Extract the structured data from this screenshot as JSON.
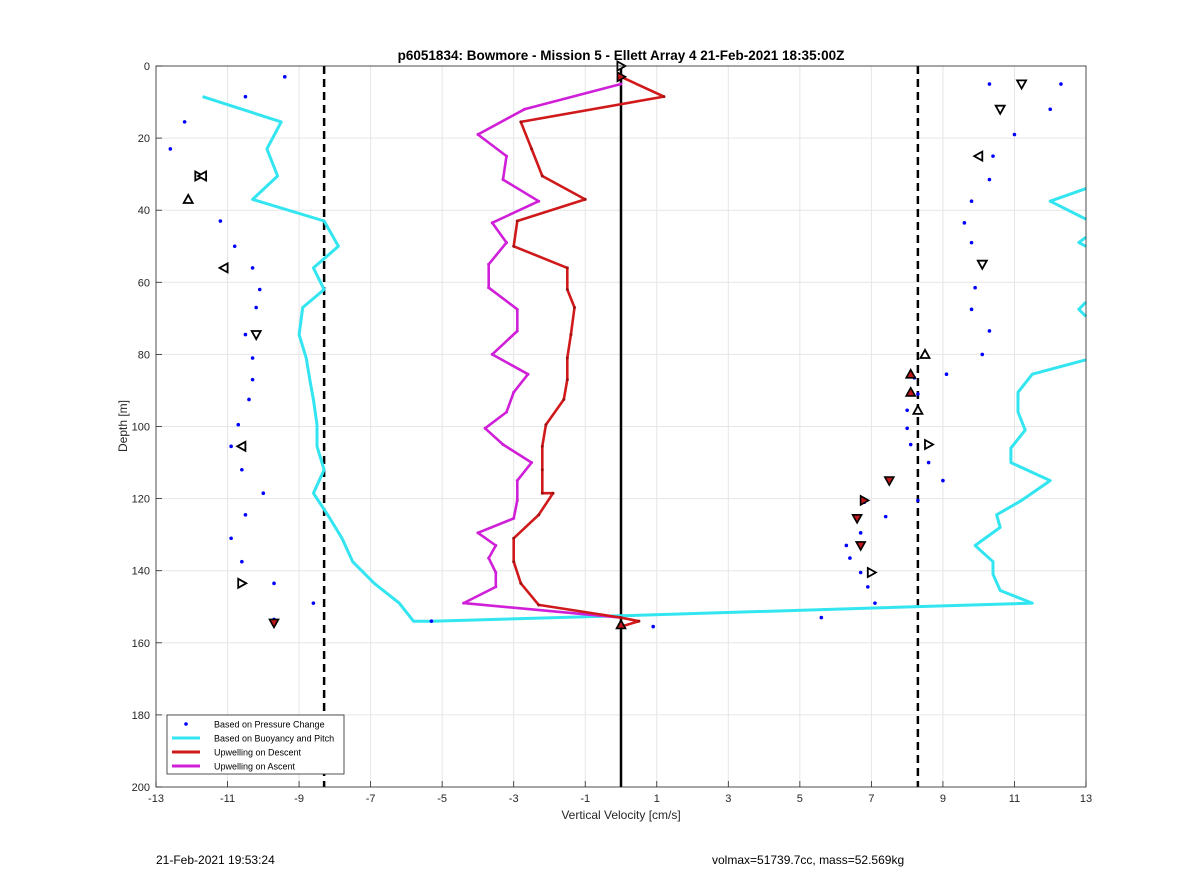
{
  "footer": {
    "timestamp": "21-Feb-2021 19:53:24",
    "volmax_mass": "volmax=51739.7cc, mass=52.569kg"
  },
  "chart_data": {
    "type": "line",
    "title": "p6051834: Bowmore - Mission 5 - Ellett Array 4 21-Feb-2021 18:35:00Z",
    "xlabel": "Vertical Velocity [cm/s]",
    "ylabel": "Depth [m]",
    "xlim": [
      -13,
      13
    ],
    "ylim": [
      0,
      200
    ],
    "y_reversed": true,
    "grid": true,
    "xticks": [
      -13,
      -11,
      -9,
      -7,
      -5,
      -3,
      -1,
      1,
      3,
      5,
      7,
      9,
      11,
      13
    ],
    "yticks": [
      0,
      20,
      40,
      60,
      80,
      100,
      120,
      140,
      160,
      180,
      200
    ],
    "legend_location": "bottom-left",
    "colors": {
      "pressure": "#0000ff",
      "buoyancy": "#33e5f0",
      "descent": "#d0191a",
      "ascent": "#d01fd8",
      "reference": "#000000"
    },
    "vertical_lines": [
      {
        "x": -8.3,
        "style": "dashed"
      },
      {
        "x": 8.3,
        "style": "dashed"
      },
      {
        "x": 0,
        "style": "solid"
      }
    ],
    "series": [
      {
        "name": "Based on Pressure Change",
        "style": "points",
        "points": [
          [
            -9.4,
            3
          ],
          [
            -10.5,
            8.5
          ],
          [
            -12.2,
            15.5
          ],
          [
            -12.6,
            23
          ],
          [
            -11.8,
            30.5
          ],
          [
            -12.1,
            37
          ],
          [
            -11.2,
            43
          ],
          [
            -10.8,
            50
          ],
          [
            -10.3,
            56
          ],
          [
            -10.1,
            62
          ],
          [
            -10.2,
            67
          ],
          [
            -10.5,
            74.5
          ],
          [
            -10.3,
            81
          ],
          [
            -10.3,
            87
          ],
          [
            -10.4,
            92.5
          ],
          [
            -10.7,
            99.5
          ],
          [
            -10.9,
            105.5
          ],
          [
            -10.6,
            112
          ],
          [
            -10.0,
            118.5
          ],
          [
            -10.5,
            124.5
          ],
          [
            -10.9,
            131
          ],
          [
            -10.6,
            137.5
          ],
          [
            -9.7,
            143.5
          ],
          [
            -9.7,
            153.5
          ],
          [
            -8.6,
            149
          ],
          [
            -5.3,
            154
          ],
          [
            0.9,
            155.5
          ],
          [
            5.6,
            153
          ],
          [
            6.3,
            133
          ],
          [
            6.4,
            136.5
          ],
          [
            6.7,
            140.5
          ],
          [
            6.9,
            144.5
          ],
          [
            7.1,
            149
          ],
          [
            6.8,
            121
          ],
          [
            6.6,
            125.5
          ],
          [
            6.7,
            129.5
          ],
          [
            7.4,
            125
          ],
          [
            8.0,
            100.5
          ],
          [
            8.1,
            105
          ],
          [
            8.6,
            110
          ],
          [
            9.0,
            115
          ],
          [
            8.3,
            120.5
          ],
          [
            8.2,
            86.5
          ],
          [
            8.3,
            91
          ],
          [
            8.0,
            95.5
          ],
          [
            9.1,
            85.5
          ],
          [
            10.3,
            5
          ],
          [
            12.3,
            5
          ],
          [
            12.0,
            12
          ],
          [
            11.0,
            19
          ],
          [
            10.4,
            25
          ],
          [
            10.3,
            31.5
          ],
          [
            9.8,
            37.5
          ],
          [
            9.6,
            43.5
          ],
          [
            9.8,
            49
          ],
          [
            10.1,
            55
          ],
          [
            9.9,
            61.5
          ],
          [
            9.8,
            67.5
          ],
          [
            10.3,
            73.5
          ],
          [
            10.1,
            80
          ]
        ]
      },
      {
        "name": "Based on Buoyancy and Pitch",
        "style": "line",
        "segments": [
          [
            [
              -11.7,
              8.5
            ],
            [
              -9.5,
              15.5
            ],
            [
              -9.9,
              23
            ],
            [
              -9.6,
              30.5
            ],
            [
              -10.3,
              37
            ],
            [
              -8.3,
              43
            ],
            [
              -7.9,
              50
            ],
            [
              -8.6,
              56
            ],
            [
              -8.3,
              62
            ],
            [
              -8.9,
              67
            ],
            [
              -9.0,
              74.5
            ],
            [
              -8.8,
              81
            ],
            [
              -8.7,
              87
            ],
            [
              -8.6,
              92.5
            ],
            [
              -8.5,
              99.5
            ],
            [
              -8.5,
              105.5
            ],
            [
              -8.3,
              112
            ],
            [
              -8.6,
              118.5
            ],
            [
              -8.2,
              124.5
            ],
            [
              -7.8,
              131
            ],
            [
              -7.5,
              137.5
            ],
            [
              -6.9,
              143.5
            ],
            [
              -6.2,
              149
            ],
            [
              -5.8,
              154
            ],
            [
              -5.3,
              154
            ],
            [
              0.0,
              152.5
            ],
            [
              11.5,
              149
            ],
            [
              10.6,
              145.5
            ],
            [
              10.4,
              141
            ],
            [
              10.4,
              137.5
            ],
            [
              9.9,
              133
            ],
            [
              10.6,
              128
            ],
            [
              10.5,
              124.5
            ],
            [
              11.2,
              120.5
            ],
            [
              12.0,
              115
            ],
            [
              10.9,
              110
            ],
            [
              10.9,
              106
            ],
            [
              11.3,
              101
            ],
            [
              11.1,
              96
            ],
            [
              11.1,
              90.5
            ],
            [
              11.5,
              85.5
            ],
            [
              13.0,
              81.5
            ]
          ],
          [
            [
              13.0,
              34
            ],
            [
              12.0,
              37.5
            ],
            [
              13.0,
              42.5
            ]
          ],
          [
            [
              13.0,
              47.5
            ],
            [
              12.8,
              49
            ],
            [
              13.0,
              50
            ]
          ],
          [
            [
              13.0,
              65.5
            ],
            [
              12.8,
              67.5
            ],
            [
              13.0,
              69.5
            ]
          ]
        ]
      },
      {
        "name": "Upwelling on Descent",
        "style": "line",
        "points": [
          [
            0.0,
            3
          ],
          [
            1.2,
            8.5
          ],
          [
            -2.8,
            15.5
          ],
          [
            -2.5,
            23
          ],
          [
            -2.2,
            30.5
          ],
          [
            -1.0,
            37
          ],
          [
            -2.9,
            43
          ],
          [
            -3.0,
            50
          ],
          [
            -1.5,
            56
          ],
          [
            -1.5,
            62
          ],
          [
            -1.3,
            67
          ],
          [
            -1.4,
            74.5
          ],
          [
            -1.5,
            81
          ],
          [
            -1.5,
            87
          ],
          [
            -1.6,
            92.5
          ],
          [
            -2.1,
            99.5
          ],
          [
            -2.2,
            105.5
          ],
          [
            -2.2,
            112
          ],
          [
            -2.2,
            118.5
          ],
          [
            -1.9,
            118.5
          ],
          [
            -2.3,
            124.5
          ],
          [
            -3.0,
            131
          ],
          [
            -3.0,
            137.5
          ],
          [
            -2.8,
            143.5
          ],
          [
            -2.3,
            149.5
          ],
          [
            0.0,
            153
          ],
          [
            0.5,
            154
          ],
          [
            0.0,
            155.5
          ]
        ]
      },
      {
        "name": "Upwelling on Ascent",
        "style": "line",
        "points": [
          [
            0.0,
            5
          ],
          [
            -2.7,
            12
          ],
          [
            -4.0,
            19
          ],
          [
            -3.2,
            25
          ],
          [
            -3.3,
            31.5
          ],
          [
            -2.3,
            37.5
          ],
          [
            -3.6,
            43.5
          ],
          [
            -3.2,
            49
          ],
          [
            -3.7,
            55
          ],
          [
            -3.7,
            61.5
          ],
          [
            -2.9,
            67.5
          ],
          [
            -2.9,
            73.5
          ],
          [
            -3.6,
            80
          ],
          [
            -2.6,
            85.5
          ],
          [
            -3.0,
            90.5
          ],
          [
            -3.2,
            96
          ],
          [
            -3.8,
            100.5
          ],
          [
            -3.3,
            105
          ],
          [
            -2.5,
            110
          ],
          [
            -2.9,
            115
          ],
          [
            -2.9,
            120.5
          ],
          [
            -3.0,
            125.5
          ],
          [
            -4.0,
            129.5
          ],
          [
            -3.5,
            133
          ],
          [
            -3.7,
            136.5
          ],
          [
            -3.5,
            140.5
          ],
          [
            -3.5,
            144.5
          ],
          [
            -4.4,
            149
          ],
          [
            0.0,
            153
          ]
        ]
      }
    ],
    "triangle_markers": {
      "hollow_black": [
        {
          "x": 0.0,
          "y": 0,
          "dir": "right"
        },
        {
          "x": 11.2,
          "y": 5,
          "dir": "down"
        },
        {
          "x": 10.6,
          "y": 12,
          "dir": "down"
        },
        {
          "x": 10.0,
          "y": 25,
          "dir": "left"
        },
        {
          "x": 10.1,
          "y": 55,
          "dir": "down"
        },
        {
          "x": 8.5,
          "y": 80,
          "dir": "up"
        },
        {
          "x": 8.3,
          "y": 95.5,
          "dir": "up"
        },
        {
          "x": 8.6,
          "y": 105,
          "dir": "right"
        },
        {
          "x": 7.0,
          "y": 140.5,
          "dir": "right"
        },
        {
          "x": -11.8,
          "y": 30.5,
          "dir": "right"
        },
        {
          "x": -11.7,
          "y": 30.5,
          "dir": "left"
        },
        {
          "x": -12.1,
          "y": 37,
          "dir": "up"
        },
        {
          "x": -11.1,
          "y": 56,
          "dir": "left"
        },
        {
          "x": -10.2,
          "y": 74.5,
          "dir": "down"
        },
        {
          "x": -10.6,
          "y": 105.5,
          "dir": "left"
        },
        {
          "x": -10.6,
          "y": 143.5,
          "dir": "right"
        }
      ],
      "filled_red": [
        {
          "x": 0.0,
          "y": 3,
          "dir": "right"
        },
        {
          "x": 8.1,
          "y": 85.5,
          "dir": "up"
        },
        {
          "x": 8.1,
          "y": 90.5,
          "dir": "up"
        },
        {
          "x": 7.5,
          "y": 115,
          "dir": "down"
        },
        {
          "x": 6.8,
          "y": 120.5,
          "dir": "right"
        },
        {
          "x": 6.6,
          "y": 125.5,
          "dir": "down"
        },
        {
          "x": 6.7,
          "y": 133,
          "dir": "down"
        },
        {
          "x": -9.7,
          "y": 154.5,
          "dir": "down"
        },
        {
          "x": 0.0,
          "y": 155,
          "dir": "up"
        }
      ]
    }
  }
}
